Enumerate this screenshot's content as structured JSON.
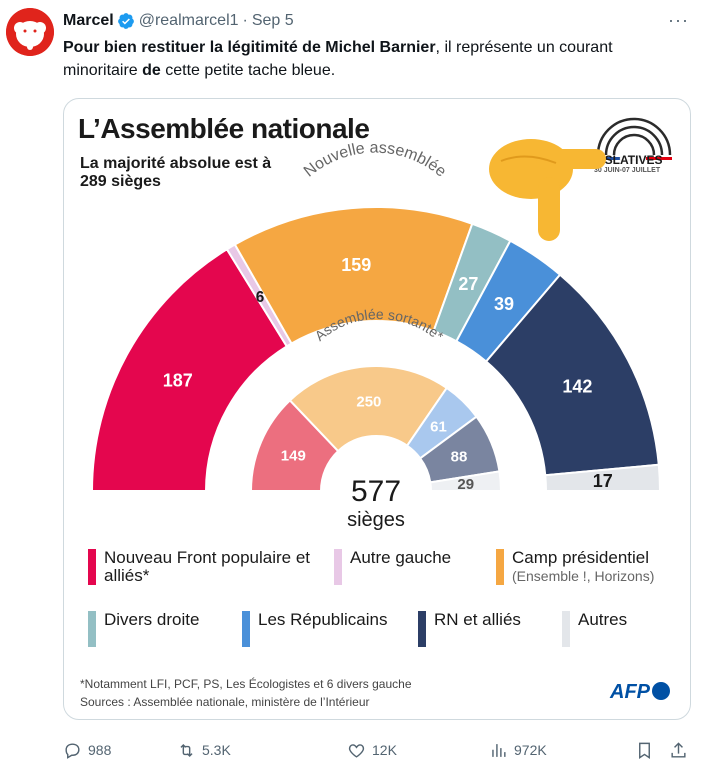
{
  "tweet": {
    "author_name": "Marcel",
    "handle": "@realmarcel1",
    "separator": "·",
    "date": "Sep 5",
    "text_bold_1": "Pour bien restituer la légitimité de Michel Barnier",
    "text_1": ", il représente un courant minoritaire ",
    "text_bold_2": "de",
    "text_2": " cette petite tache bleue."
  },
  "infographic": {
    "title": "L’Assemblée nationale",
    "subtitle": "La majorité absolue est à 289 sièges",
    "logo_title": "GISLATIVES",
    "logo_sub": "30 JUIN-07 JUILLET",
    "outer_label": "Nouvelle assemblée",
    "inner_label": "Assemblée sortante",
    "inner_label_mark": "*",
    "total": "577",
    "total_label": "sièges",
    "footnote": "*Notamment LFI, PCF, PS, Les Écologistes et 6 divers gauche",
    "sources": "Sources : Assemblée nationale, ministère de l’Intérieur",
    "afp": "AFP"
  },
  "legend": [
    {
      "label": "Nouveau Front populaire et alliés*",
      "sub": "",
      "color": "#e4064e"
    },
    {
      "label": "Autre gauche",
      "sub": "",
      "color": "#e8c8e6"
    },
    {
      "label": "Camp présidentiel",
      "sub": "(Ensemble !, Horizons)",
      "color": "#f5a742"
    },
    {
      "label": "Divers droite",
      "sub": "",
      "color": "#93bfc4"
    },
    {
      "label": "Les Républicains",
      "sub": "",
      "color": "#4a90d9"
    },
    {
      "label": "RN et alliés",
      "sub": "",
      "color": "#2c3e66"
    },
    {
      "label": "Autres",
      "sub": "",
      "color": "#e3e6ea"
    }
  ],
  "chart_data": [
    {
      "type": "pie",
      "title": "Nouvelle assemblée",
      "categories": [
        "Nouveau Front populaire et alliés*",
        "Autre gauche",
        "Camp présidentiel",
        "Divers droite",
        "Les Républicains",
        "RN et alliés",
        "Autres"
      ],
      "values": [
        187,
        6,
        159,
        27,
        39,
        142,
        17
      ],
      "colors": [
        "#e4064e",
        "#e8c8e6",
        "#f5a742",
        "#93bfc4",
        "#4a90d9",
        "#2c3e66",
        "#e3e6ea"
      ]
    },
    {
      "type": "pie",
      "title": "Assemblée sortante*",
      "categories": [
        "Nouveau Front populaire et alliés*",
        "Camp présidentiel",
        "Les Républicains",
        "RN et alliés",
        "Autres"
      ],
      "values": [
        149,
        250,
        61,
        88,
        29
      ],
      "colors": [
        "#ec6f7f",
        "#f8c98a",
        "#a9c8ee",
        "#7a85a0",
        "#eef0f3"
      ]
    }
  ],
  "actions": {
    "replies": "988",
    "reposts": "5.3K",
    "likes": "12K",
    "views": "972K"
  },
  "icons": {
    "verified": "verified-badge-icon",
    "more": "more-icon",
    "reply": "reply-icon",
    "repost": "repost-icon",
    "like": "like-icon",
    "views": "views-icon",
    "bookmark": "bookmark-icon",
    "share": "share-icon"
  }
}
